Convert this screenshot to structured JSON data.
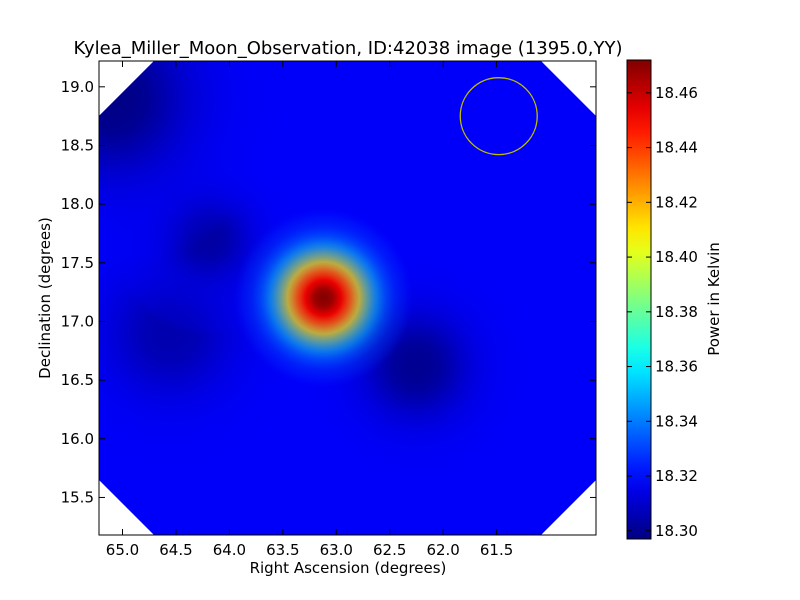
{
  "chart_data": {
    "type": "heatmap",
    "title": "Kylea_Miller_Moon_Observation, ID:42038 image (1395.0,YY)",
    "xlabel": "Right Ascension (degrees)",
    "ylabel": "Declination (degrees)",
    "xlim": [
      65.22,
      60.57
    ],
    "ylim": [
      15.18,
      19.22
    ],
    "x_ticks": [
      65.0,
      64.5,
      64.0,
      63.5,
      63.0,
      62.5,
      62.0,
      61.5
    ],
    "x_tick_labels": [
      "65.0",
      "64.5",
      "64.0",
      "63.5",
      "63.0",
      "62.5",
      "62.0",
      "61.5"
    ],
    "y_ticks": [
      15.5,
      16.0,
      16.5,
      17.0,
      17.5,
      18.0,
      18.5,
      19.0
    ],
    "y_tick_labels": [
      "15.5",
      "16.0",
      "16.5",
      "17.0",
      "17.5",
      "18.0",
      "18.5",
      "19.0"
    ],
    "colorbar": {
      "label": "Power in Kelvin",
      "colormap": "jet",
      "vmin": 18.297,
      "vmax": 18.472,
      "ticks": [
        18.3,
        18.32,
        18.34,
        18.36,
        18.38,
        18.4,
        18.42,
        18.44,
        18.46
      ],
      "tick_labels": [
        "18.30",
        "18.32",
        "18.34",
        "18.36",
        "18.38",
        "18.40",
        "18.42",
        "18.44",
        "18.46"
      ]
    },
    "background_level": 18.318,
    "sources": [
      {
        "ra": 63.12,
        "dec": 17.2,
        "peak": 18.472,
        "radius_deg": 0.42
      },
      {
        "ra": 62.25,
        "dec": 16.62,
        "peak": 18.3,
        "radius_deg": 0.55
      },
      {
        "ra": 64.55,
        "dec": 16.9,
        "peak": 18.305,
        "radius_deg": 0.65
      },
      {
        "ra": 64.2,
        "dec": 17.7,
        "peak": 18.303,
        "radius_deg": 0.45
      },
      {
        "ra": 65.1,
        "dec": 18.9,
        "peak": 18.298,
        "radius_deg": 0.8
      }
    ],
    "beam_circle": {
      "ra": 61.48,
      "dec": 18.75,
      "radius_deg": 0.36,
      "color": "#bfbf00"
    }
  }
}
